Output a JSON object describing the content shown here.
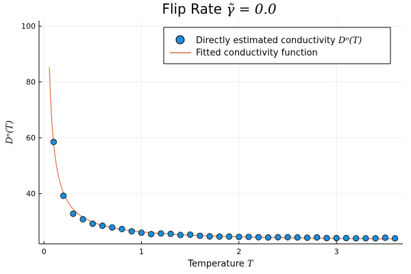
{
  "chart_data": {
    "type": "scatter",
    "title_prefix": "Flip Rate ",
    "title_math": "γ̃ = 0.0",
    "xlabel_prefix": "Temperature ",
    "xlabel_math": "T",
    "ylabel": "Dⁿ(T)",
    "xlim": [
      -0.05,
      3.68
    ],
    "ylim": [
      22,
      102
    ],
    "xticks": [
      0,
      1,
      2,
      3
    ],
    "yticks": [
      40,
      60,
      80,
      100
    ],
    "grid": true,
    "legend_position": "top-right",
    "series": [
      {
        "name": "Directly estimated conductivity",
        "legend_math": "Dⁿ(T)",
        "kind": "scatter",
        "color": "#1f8dd6",
        "x": [
          0.1,
          0.2,
          0.3,
          0.4,
          0.5,
          0.6,
          0.7,
          0.8,
          0.9,
          1.0,
          1.1,
          1.2,
          1.3,
          1.4,
          1.5,
          1.6,
          1.7,
          1.8,
          1.9,
          2.0,
          2.1,
          2.2,
          2.3,
          2.4,
          2.5,
          2.6,
          2.7,
          2.8,
          2.9,
          3.0,
          3.1,
          3.2,
          3.3,
          3.4,
          3.5,
          3.6
        ],
        "y": [
          58.5,
          39.2,
          32.8,
          30.8,
          29.2,
          28.5,
          27.9,
          27.3,
          26.5,
          26.0,
          25.5,
          25.7,
          25.6,
          25.2,
          25.3,
          24.9,
          24.7,
          24.6,
          24.6,
          24.5,
          24.5,
          24.4,
          24.3,
          24.4,
          24.4,
          24.3,
          24.2,
          24.3,
          24.1,
          24.1,
          24.1,
          24.0,
          24.0,
          24.0,
          24.2,
          24.0
        ]
      },
      {
        "name": "Fitted conductivity function",
        "kind": "line",
        "color": "#e26f46",
        "model": {
          "a": 22.8,
          "b": 3.5,
          "x_start": 0.056,
          "x_end": 3.6
        }
      }
    ]
  }
}
